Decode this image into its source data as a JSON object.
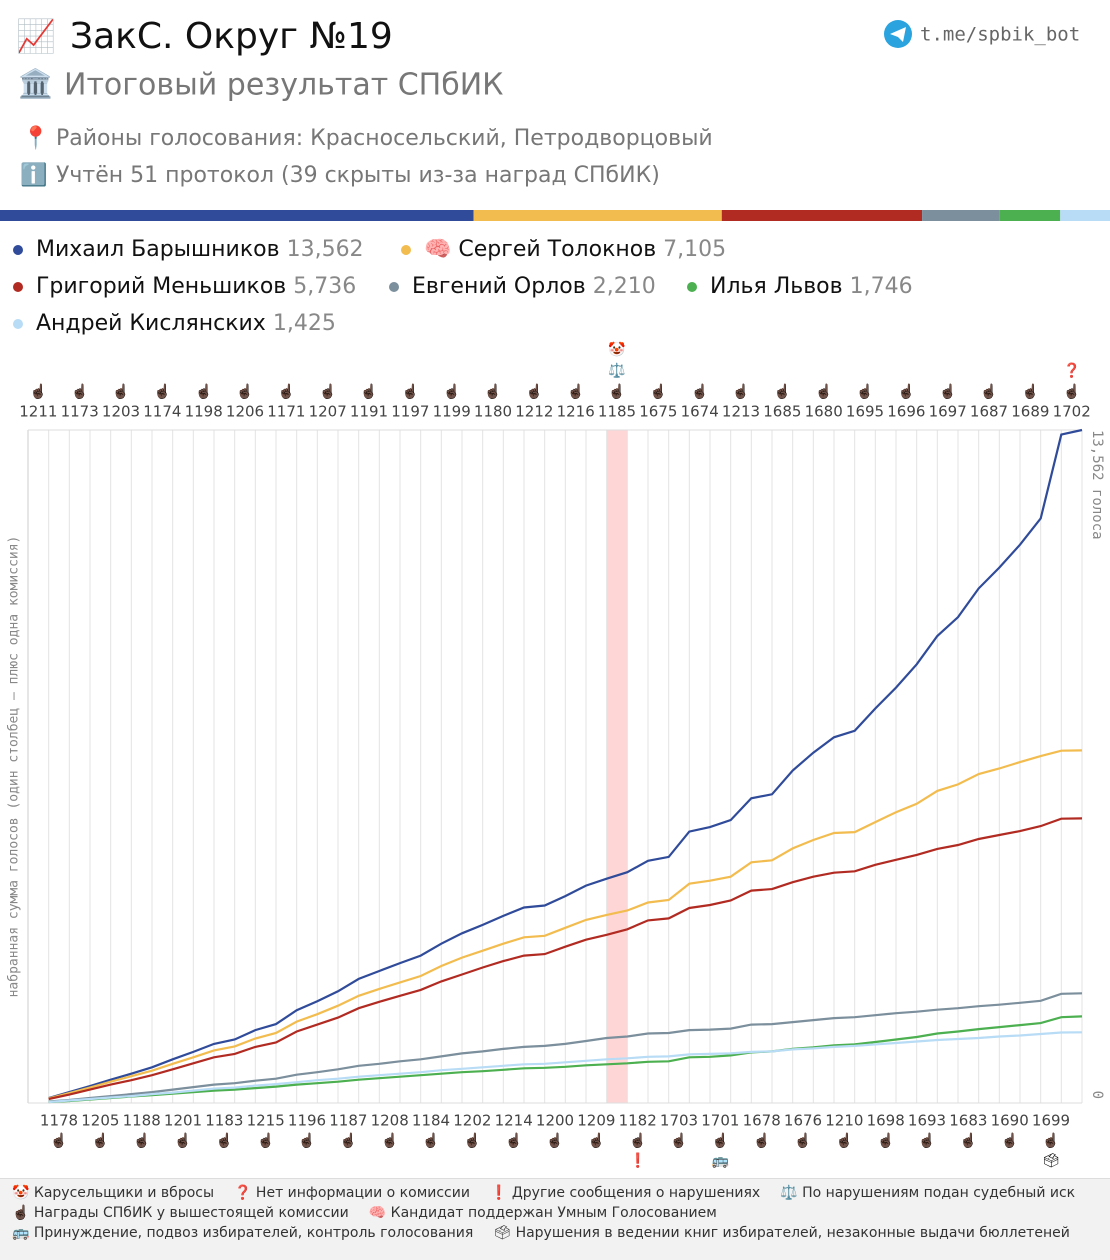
{
  "header": {
    "icon": "📈",
    "title": "ЗакС. Округ №19",
    "subtitle_icon": "🏛️",
    "subtitle": "Итоговый результат СПбИК",
    "districts_icon": "📍",
    "districts": "Районы голосования: Красносельский, Петродворцовый",
    "info_icon": "ℹ️",
    "info": "Учтён 51 протокол (39 скрыты из-за наград СПбИК)",
    "link": "t.me/spbik_bot"
  },
  "chart_data": {
    "type": "line",
    "y_label": "набранная сумма голосов (один столбец – плюс одна комиссия)",
    "categories": [
      "1211",
      "1178",
      "1173",
      "1205",
      "1203",
      "1188",
      "1174",
      "1201",
      "1198",
      "1183",
      "1206",
      "1215",
      "1171",
      "1196",
      "1207",
      "1187",
      "1191",
      "1208",
      "1197",
      "1184",
      "1199",
      "1202",
      "1180",
      "1214",
      "1212",
      "1200",
      "1216",
      "1209",
      "1185",
      "1182",
      "1675",
      "1703",
      "1674",
      "1701",
      "1213",
      "1678",
      "1685",
      "1676",
      "1680",
      "1210",
      "1695",
      "1698",
      "1696",
      "1693",
      "1697",
      "1683",
      "1687",
      "1690",
      "1689",
      "1699",
      "1702"
    ],
    "markers": [
      [
        "☝🏿"
      ],
      [
        "☝🏿"
      ],
      [
        "☝🏿"
      ],
      [
        "☝🏿"
      ],
      [
        "☝🏿"
      ],
      [
        "☝🏿"
      ],
      [
        "☝🏿"
      ],
      [
        "☝🏿"
      ],
      [
        "☝🏿"
      ],
      [
        "☝🏿"
      ],
      [
        "☝🏿"
      ],
      [
        "☝🏿"
      ],
      [
        "☝🏿"
      ],
      [
        "☝🏿"
      ],
      [
        "☝🏿"
      ],
      [
        "☝🏿"
      ],
      [
        "☝🏿"
      ],
      [
        "☝🏿"
      ],
      [
        "☝🏿"
      ],
      [
        "☝🏿"
      ],
      [
        "☝🏿"
      ],
      [
        "☝🏿"
      ],
      [
        "☝🏿"
      ],
      [
        "☝🏿"
      ],
      [
        "☝🏿"
      ],
      [
        "☝🏿"
      ],
      [
        "☝🏿"
      ],
      [
        "☝🏿"
      ],
      [
        "☝🏿",
        "⚖️",
        "🤡"
      ],
      [
        "☝🏿",
        "❗"
      ],
      [
        "☝🏿"
      ],
      [
        "☝🏿"
      ],
      [
        "☝🏿"
      ],
      [
        "☝🏿",
        "🚌"
      ],
      [
        "☝🏿"
      ],
      [
        "☝🏿"
      ],
      [
        "☝🏿"
      ],
      [
        "☝🏿"
      ],
      [
        "☝🏿"
      ],
      [
        "☝🏿"
      ],
      [
        "☝🏿"
      ],
      [
        "☝🏿"
      ],
      [
        "☝🏿"
      ],
      [
        "☝🏿"
      ],
      [
        "☝🏿"
      ],
      [
        "☝🏿"
      ],
      [
        "☝🏿"
      ],
      [
        "☝🏿"
      ],
      [
        "☝🏿"
      ],
      [
        "☝🏿",
        "🗳"
      ],
      [
        "☝🏿",
        "❓"
      ]
    ],
    "ylim": [
      0,
      13562
    ],
    "yticks": [
      0,
      {
        "value": 13562,
        "label": "13,562 голоса"
      }
    ],
    "series": [
      {
        "name": "Михаил Барышников",
        "color": "#2f4b9a",
        "total": 13562,
        "total_label": "13,562",
        "values": [
          100,
          220,
          340,
          470,
          590,
          720,
          880,
          1030,
          1190,
          1280,
          1470,
          1590,
          1870,
          2050,
          2250,
          2500,
          2660,
          2820,
          2970,
          3210,
          3420,
          3590,
          3770,
          3940,
          3980,
          4170,
          4380,
          4520,
          4650,
          4880,
          4960,
          5470,
          5560,
          5700,
          6140,
          6220,
          6700,
          7060,
          7370,
          7500,
          7950,
          8370,
          8840,
          9410,
          9790,
          10370,
          10790,
          11250,
          11780,
          13470,
          13562
        ]
      },
      {
        "name": "Сергей Толокнов",
        "badge": "🧠",
        "color": "#f2bc4f",
        "total": 7105,
        "total_label": "7,105",
        "values": [
          90,
          200,
          310,
          430,
          540,
          650,
          790,
          920,
          1060,
          1140,
          1300,
          1410,
          1640,
          1790,
          1960,
          2160,
          2300,
          2430,
          2560,
          2760,
          2930,
          3070,
          3210,
          3340,
          3370,
          3530,
          3690,
          3790,
          3880,
          4040,
          4090,
          4420,
          4480,
          4560,
          4850,
          4890,
          5130,
          5300,
          5440,
          5460,
          5660,
          5860,
          6030,
          6290,
          6420,
          6630,
          6740,
          6870,
          6990,
          7100,
          7105
        ]
      },
      {
        "name": "Григорий Меньшиков",
        "color": "#b22b22",
        "total": 5736,
        "total_label": "5,736",
        "values": [
          80,
          170,
          270,
          370,
          460,
          560,
          680,
          800,
          920,
          990,
          1130,
          1220,
          1440,
          1580,
          1720,
          1910,
          2040,
          2160,
          2280,
          2450,
          2590,
          2730,
          2860,
          2970,
          3000,
          3150,
          3290,
          3390,
          3500,
          3680,
          3720,
          3930,
          3990,
          4080,
          4280,
          4310,
          4450,
          4560,
          4640,
          4670,
          4800,
          4900,
          5000,
          5120,
          5200,
          5320,
          5400,
          5480,
          5580,
          5730,
          5736
        ]
      },
      {
        "name": "Евгений Орлов",
        "color": "#7b8f9c",
        "total": 2210,
        "total_label": "2,210",
        "values": [
          30,
          60,
          100,
          140,
          180,
          220,
          270,
          320,
          370,
          400,
          450,
          490,
          570,
          620,
          680,
          750,
          790,
          840,
          880,
          940,
          1000,
          1040,
          1090,
          1130,
          1150,
          1190,
          1250,
          1310,
          1340,
          1400,
          1410,
          1470,
          1480,
          1500,
          1580,
          1590,
          1630,
          1670,
          1710,
          1730,
          1770,
          1810,
          1840,
          1880,
          1910,
          1950,
          1980,
          2020,
          2060,
          2200,
          2210
        ]
      },
      {
        "name": "Илья Львов",
        "color": "#4caf50",
        "total": 1746,
        "total_label": "1,746",
        "values": [
          20,
          40,
          70,
          100,
          130,
          160,
          190,
          220,
          250,
          270,
          300,
          330,
          370,
          400,
          430,
          470,
          500,
          530,
          560,
          590,
          620,
          640,
          670,
          700,
          710,
          730,
          760,
          780,
          800,
          830,
          840,
          920,
          930,
          960,
          1020,
          1040,
          1090,
          1120,
          1160,
          1180,
          1230,
          1280,
          1330,
          1400,
          1440,
          1490,
          1530,
          1570,
          1610,
          1730,
          1746
        ]
      },
      {
        "name": "Андрей Кислянских",
        "color": "#b8dcf5",
        "total": 1425,
        "total_label": "1,425",
        "values": [
          20,
          50,
          80,
          110,
          140,
          180,
          210,
          250,
          290,
          310,
          350,
          380,
          420,
          460,
          490,
          530,
          560,
          590,
          620,
          660,
          690,
          720,
          750,
          780,
          790,
          820,
          850,
          880,
          900,
          930,
          940,
          980,
          990,
          1000,
          1030,
          1040,
          1080,
          1100,
          1130,
          1150,
          1180,
          1210,
          1240,
          1270,
          1290,
          1310,
          1340,
          1360,
          1390,
          1420,
          1425
        ]
      }
    ]
  },
  "legend": [
    {
      "icon": "🤡",
      "text": "Карусельщики и вбросы"
    },
    {
      "icon": "❓",
      "text": "Нет информации о комиссии"
    },
    {
      "icon": "❗",
      "text": "Другие сообщения о нарушениях"
    },
    {
      "icon": "⚖️",
      "text": "По нарушениям подан судебный иск"
    },
    {
      "icon": "☝🏿",
      "text": "Награды СПбИК у вышестоящей комиссии"
    },
    {
      "icon": "🧠",
      "text": "Кандидат поддержан Умным Голосованием"
    },
    {
      "icon": "🚌",
      "text": "Принуждение, подвоз избирателей, контроль голосования"
    },
    {
      "icon": "🗳",
      "text": "Нарушения в ведении книг избирателей, незаконные выдачи бюллетеней"
    }
  ]
}
